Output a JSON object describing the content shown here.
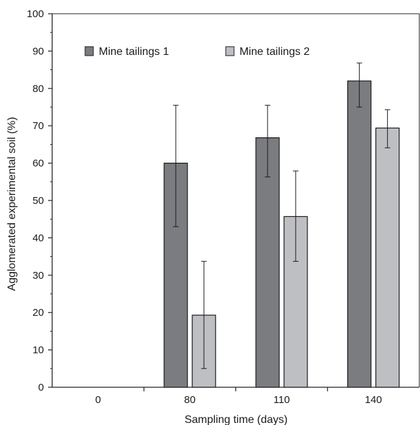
{
  "chart_data": {
    "type": "bar",
    "title": "",
    "xlabel": "Sampling time (days)",
    "ylabel": "Agglomerated experimental soil (%)",
    "categories": [
      "0",
      "80",
      "110",
      "140"
    ],
    "ylim": [
      0,
      100
    ],
    "yticks": [
      0,
      10,
      20,
      30,
      40,
      50,
      60,
      70,
      80,
      90,
      100
    ],
    "grid": false,
    "legend_position": "top",
    "series": [
      {
        "name": "Mine tailings 1",
        "color": "#7b7c80",
        "values": [
          0,
          60,
          66.8,
          82
        ],
        "error_low": [
          0,
          43,
          56.3,
          75
        ],
        "error_high": [
          0,
          75.5,
          75.5,
          86.8
        ]
      },
      {
        "name": "Mine tailings 2",
        "color": "#bdbfc2",
        "values": [
          0,
          19.3,
          45.7,
          69.4
        ],
        "error_low": [
          0,
          5,
          33.7,
          64.1
        ],
        "error_high": [
          0,
          33.7,
          57.9,
          74.3
        ]
      }
    ]
  }
}
